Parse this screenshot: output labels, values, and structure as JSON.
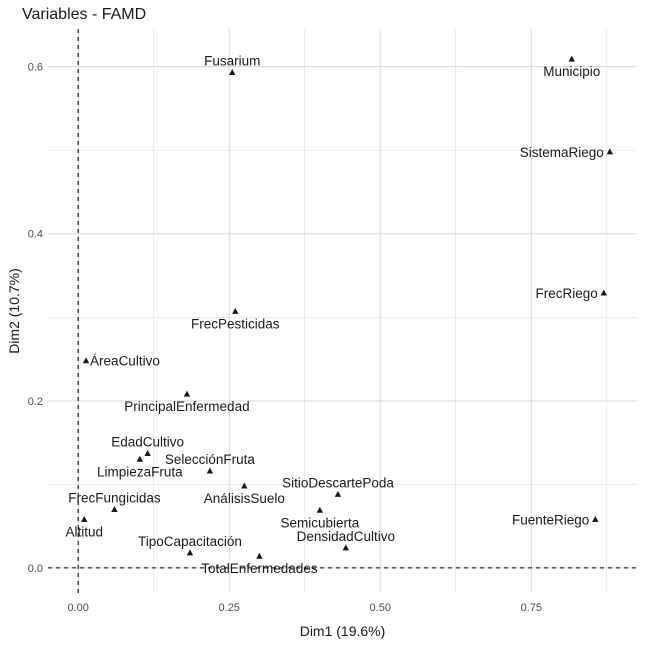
{
  "chart_data": {
    "type": "scatter",
    "title": "Variables - FAMD",
    "xlabel": "Dim1 (19.6%)",
    "ylabel": "Dim2 (10.7%)",
    "xlim": [
      -0.05,
      0.925
    ],
    "ylim": [
      -0.03,
      0.645
    ],
    "x_ticks": [
      0.0,
      0.25,
      0.5,
      0.75
    ],
    "x_tick_labels": [
      "0.00",
      "0.25",
      "0.50",
      "0.75"
    ],
    "y_ticks": [
      0.0,
      0.2,
      0.4,
      0.6
    ],
    "y_tick_labels": [
      "0.0",
      "0.2",
      "0.4",
      "0.6"
    ],
    "x_minor_ticks": [
      0.125,
      0.375,
      0.625,
      0.875
    ],
    "y_minor_ticks": [
      0.1,
      0.3,
      0.5
    ],
    "grid": true,
    "reference_lines": {
      "x": 0,
      "y": 0,
      "style": "dashed"
    },
    "marker": "triangle",
    "marker_color": "#1a1a1a",
    "grid_color": "#d9d9d9",
    "points": [
      {
        "label": "Fusarium",
        "x": 0.255,
        "y": 0.593,
        "pos": "top"
      },
      {
        "label": "Municipio",
        "x": 0.817,
        "y": 0.609,
        "pos": "bottom"
      },
      {
        "label": "SistemaRiego",
        "x": 0.88,
        "y": 0.498,
        "pos": "left"
      },
      {
        "label": "FrecRiego",
        "x": 0.87,
        "y": 0.329,
        "pos": "left"
      },
      {
        "label": "FrecPesticidas",
        "x": 0.26,
        "y": 0.307,
        "pos": "bottom"
      },
      {
        "label": "ÁreaCultivo",
        "x": 0.013,
        "y": 0.248,
        "pos": "right"
      },
      {
        "label": "PrincipalEnfermedad",
        "x": 0.18,
        "y": 0.208,
        "pos": "bottom"
      },
      {
        "label": "EdadCultivo",
        "x": 0.115,
        "y": 0.137,
        "pos": "top"
      },
      {
        "label": "LimpiezaFruta",
        "x": 0.102,
        "y": 0.13,
        "pos": "bottom"
      },
      {
        "label": "SelecciónFruta",
        "x": 0.218,
        "y": 0.116,
        "pos": "top"
      },
      {
        "label": "AnálisisSuelo",
        "x": 0.275,
        "y": 0.098,
        "pos": "bottom"
      },
      {
        "label": "SitioDescartePoda",
        "x": 0.43,
        "y": 0.088,
        "pos": "top"
      },
      {
        "label": "FrecFungicidas",
        "x": 0.06,
        "y": 0.07,
        "pos": "top"
      },
      {
        "label": "Semicubierta",
        "x": 0.4,
        "y": 0.069,
        "pos": "bottom"
      },
      {
        "label": "FuenteRiego",
        "x": 0.856,
        "y": 0.058,
        "pos": "left"
      },
      {
        "label": "Altitud",
        "x": 0.01,
        "y": 0.058,
        "pos": "bottom"
      },
      {
        "label": "DensidadCultivo",
        "x": 0.443,
        "y": 0.024,
        "pos": "top"
      },
      {
        "label": "TipoCapacitación",
        "x": 0.185,
        "y": 0.018,
        "pos": "top"
      },
      {
        "label": "TotalEnfermedades",
        "x": 0.3,
        "y": 0.014,
        "pos": "bottom"
      }
    ]
  }
}
